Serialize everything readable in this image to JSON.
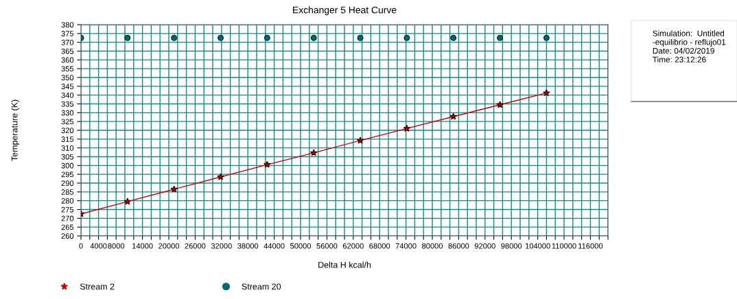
{
  "chart_data": {
    "type": "line",
    "title": "Exchanger 5 Heat Curve",
    "xlabel": "Delta H kcal/h",
    "ylabel": "Temperature (K)",
    "annotations": [
      "Simulation:  Untitled\n-equilibrio - reflujo01\nDate: 04/02/2019\nTime: 23:12:26"
    ],
    "x": [
      0,
      10600,
      21200,
      31800,
      42400,
      53000,
      63600,
      74200,
      84800,
      95400,
      106000
    ],
    "series": [
      {
        "name": "Stream 2",
        "marker": "star",
        "color": "#cc0000",
        "values": [
          272.5,
          279.5,
          286.5,
          293.5,
          300.5,
          307.2,
          314.2,
          321,
          327.8,
          334.5,
          341.2
        ]
      },
      {
        "name": "Stream 20",
        "type": "scatter",
        "marker": "circle",
        "color": "#006b6b",
        "values": [
          372.5,
          372.5,
          372.5,
          372.5,
          372.5,
          372.5,
          372.5,
          372.5,
          372.5,
          372.5,
          372.5
        ]
      }
    ],
    "xlim": [
      0,
      120000
    ],
    "xticks": [
      0,
      {
        "value": 2000,
        "label": null
      },
      4000,
      {
        "value": 6000,
        "label": null
      },
      8000,
      {
        "value": 10000,
        "label": null
      },
      {
        "value": 12000,
        "label": null
      },
      14000,
      {
        "value": 16000,
        "label": null
      },
      {
        "value": 18000,
        "label": null
      },
      20000,
      {
        "value": 22000,
        "label": null
      },
      {
        "value": 24000,
        "label": null
      },
      26000,
      {
        "value": 28000,
        "label": null
      },
      {
        "value": 30000,
        "label": null
      },
      32000,
      {
        "value": 34000,
        "label": null
      },
      {
        "value": 36000,
        "label": null
      },
      38000,
      {
        "value": 40000,
        "label": null
      },
      {
        "value": 42000,
        "label": null
      },
      44000,
      {
        "value": 46000,
        "label": null
      },
      {
        "value": 48000,
        "label": null
      },
      50000,
      {
        "value": 52000,
        "label": null
      },
      {
        "value": 54000,
        "label": null
      },
      56000,
      {
        "value": 58000,
        "label": null
      },
      {
        "value": 60000,
        "label": null
      },
      62000,
      {
        "value": 64000,
        "label": null
      },
      {
        "value": 66000,
        "label": null
      },
      68000,
      {
        "value": 70000,
        "label": null
      },
      {
        "value": 72000,
        "label": null
      },
      74000,
      {
        "value": 76000,
        "label": null
      },
      {
        "value": 78000,
        "label": null
      },
      80000,
      {
        "value": 82000,
        "label": null
      },
      {
        "value": 84000,
        "label": null
      },
      86000,
      {
        "value": 88000,
        "label": null
      },
      {
        "value": 90000,
        "label": null
      },
      92000,
      {
        "value": 94000,
        "label": null
      },
      {
        "value": 96000,
        "label": null
      },
      98000,
      {
        "value": 100000,
        "label": null
      },
      {
        "value": 102000,
        "label": null
      },
      104000,
      {
        "value": 106000,
        "label": null
      },
      {
        "value": 108000,
        "label": null
      },
      110000,
      {
        "value": 112000,
        "label": null
      },
      {
        "value": 114000,
        "label": null
      },
      116000,
      {
        "value": 118000,
        "label": null
      },
      {
        "value": 120000,
        "label": null
      }
    ],
    "ylim": [
      260,
      380
    ],
    "yticks": [
      260,
      265,
      270,
      275,
      280,
      285,
      290,
      295,
      300,
      305,
      310,
      315,
      320,
      325,
      330,
      335,
      340,
      345,
      350,
      355,
      360,
      365,
      370,
      375,
      380
    ],
    "grid": true,
    "legend": "bottom",
    "line_style": "solid"
  }
}
